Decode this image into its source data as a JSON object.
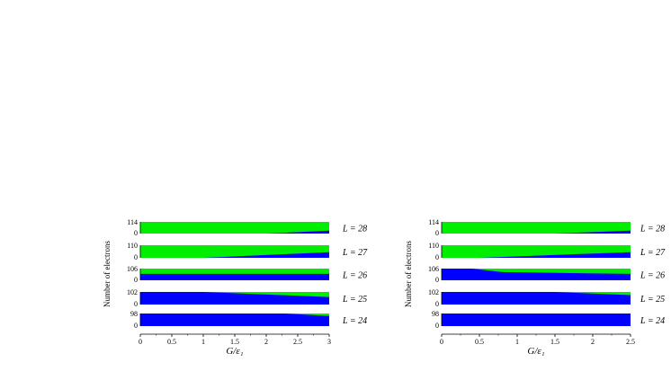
{
  "chart_data": [
    {
      "type": "area",
      "xlabel": "G/ε₁",
      "ylabel": "Number of electrons",
      "xlim": [
        0,
        3
      ],
      "x_ticks": [
        "0",
        "0.5",
        "1",
        "1.5",
        "2",
        "2.5",
        "3"
      ],
      "colors": {
        "filled": "#00ee00",
        "empty": "#0000ff"
      },
      "series": [
        {
          "name": "L = 28",
          "top_tick": "114",
          "bottom_tick": "0",
          "x": [
            0,
            2.0,
            3
          ],
          "blue_fraction": [
            0,
            0,
            0.25
          ]
        },
        {
          "name": "L = 27",
          "top_tick": "110",
          "bottom_tick": "0",
          "x": [
            0,
            1.0,
            3
          ],
          "blue_fraction": [
            0,
            0,
            0.45
          ]
        },
        {
          "name": "L = 26",
          "top_tick": "106",
          "bottom_tick": "0",
          "x": [
            0,
            3
          ],
          "blue_fraction": [
            0.55,
            0.55
          ]
        },
        {
          "name": "L = 25",
          "top_tick": "102",
          "bottom_tick": "0",
          "x": [
            0,
            1.0,
            3
          ],
          "blue_fraction": [
            1.0,
            1.0,
            0.6
          ]
        },
        {
          "name": "L = 24",
          "top_tick": "98",
          "bottom_tick": "0",
          "x": [
            0,
            2.3,
            3
          ],
          "blue_fraction": [
            1.0,
            1.0,
            0.8
          ]
        }
      ]
    },
    {
      "type": "area",
      "xlabel": "G/ε₁",
      "ylabel": "Number of electrons",
      "xlim": [
        0,
        2.5
      ],
      "x_ticks": [
        "0",
        "0.5",
        "1",
        "1.5",
        "2",
        "2.5"
      ],
      "colors": {
        "filled": "#00ee00",
        "empty": "#0000ff"
      },
      "series": [
        {
          "name": "L = 28",
          "top_tick": "114",
          "bottom_tick": "0",
          "x": [
            0,
            1.5,
            2.5
          ],
          "blue_fraction": [
            0,
            0,
            0.25
          ]
        },
        {
          "name": "L = 27",
          "top_tick": "110",
          "bottom_tick": "0",
          "x": [
            0,
            0.5,
            2.5
          ],
          "blue_fraction": [
            0,
            0,
            0.45
          ]
        },
        {
          "name": "L = 26",
          "top_tick": "106",
          "bottom_tick": "0",
          "x": [
            0,
            0.4,
            0.8,
            2.5
          ],
          "blue_fraction": [
            1.0,
            1.0,
            0.7,
            0.55
          ]
        },
        {
          "name": "L = 25",
          "top_tick": "102",
          "bottom_tick": "0",
          "x": [
            0,
            1.5,
            2.5
          ],
          "blue_fraction": [
            1.0,
            1.0,
            0.75
          ]
        },
        {
          "name": "L = 24",
          "top_tick": "98",
          "bottom_tick": "0",
          "x": [
            0,
            2.5
          ],
          "blue_fraction": [
            1.0,
            1.0
          ]
        }
      ]
    }
  ]
}
